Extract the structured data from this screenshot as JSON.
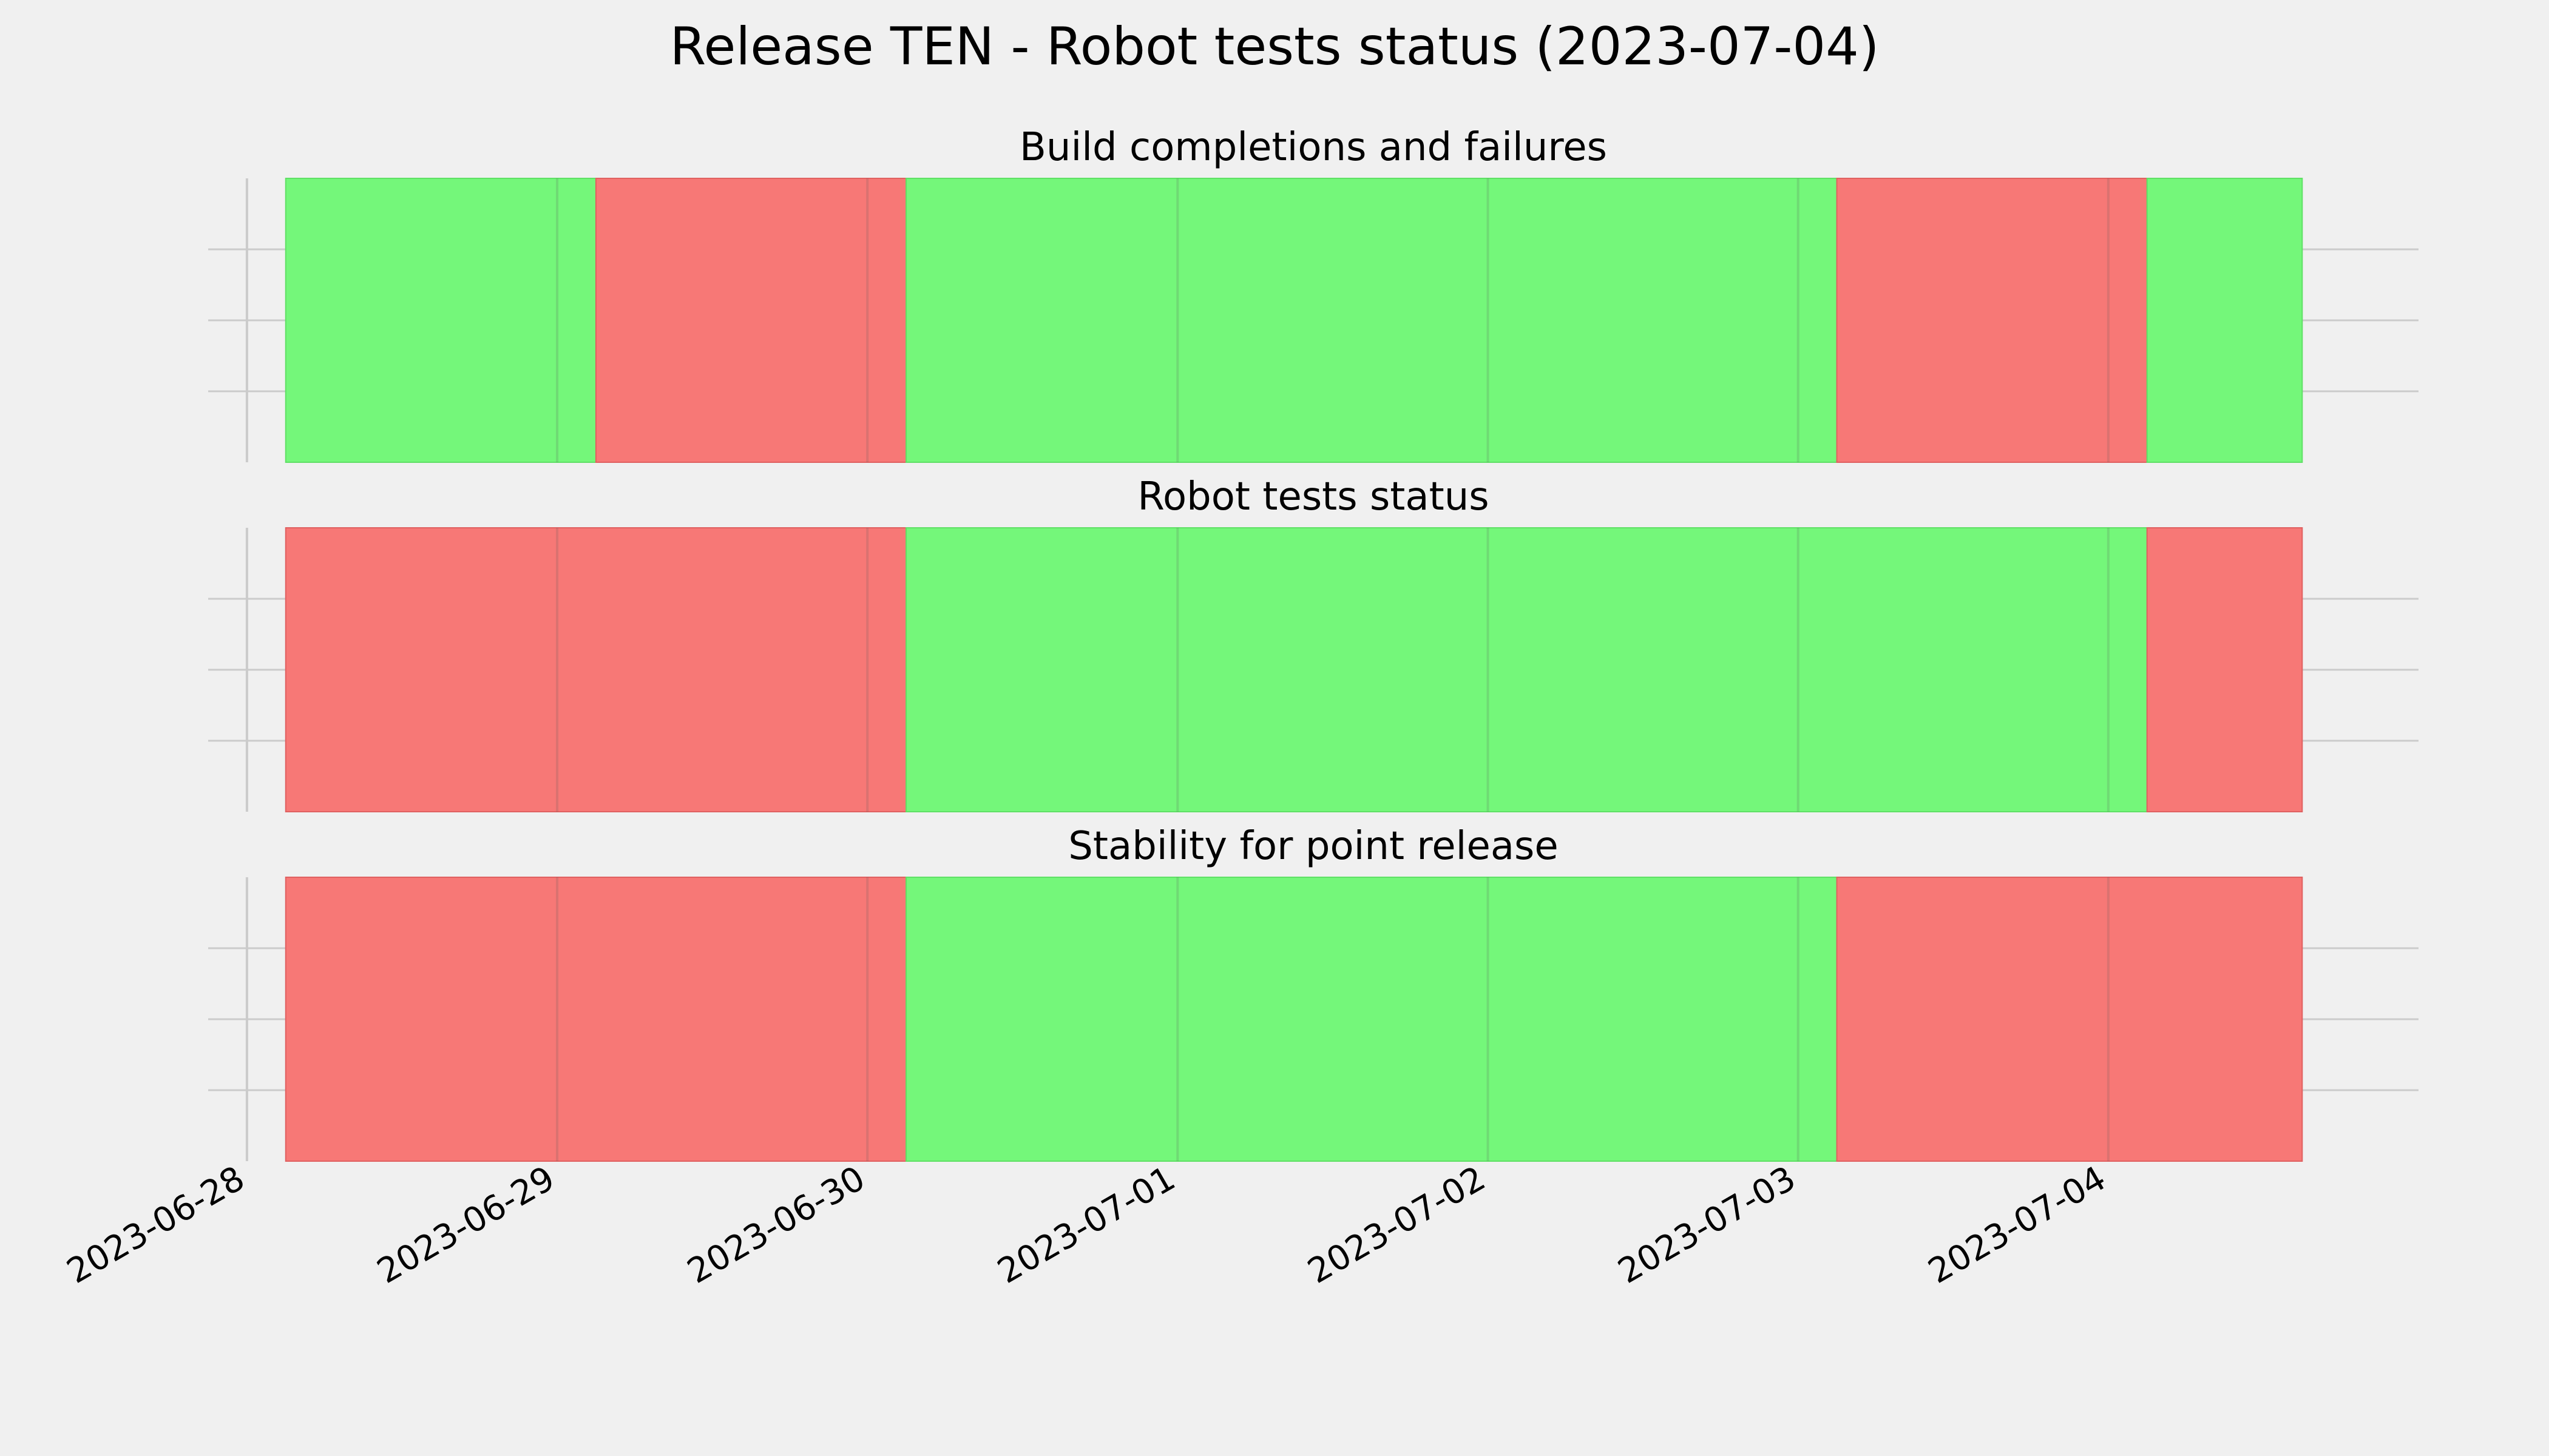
{
  "chart_data": {
    "type": "timeline",
    "title": "Release TEN - Robot tests status (2023-07-04)",
    "x_ticks": [
      "2023-06-28",
      "2023-06-29",
      "2023-06-30",
      "2023-07-01",
      "2023-07-02",
      "2023-07-03",
      "2023-07-04"
    ],
    "xlim": [
      "2023-06-27T21:00",
      "2023-07-05T00:00"
    ],
    "grid": true,
    "colors": {
      "pass": "#74f77a",
      "fail": "#f77876",
      "background": "#f0f0f0",
      "grid": "#cbcbcb"
    },
    "panels": [
      {
        "title": "Build completions and failures",
        "segments": [
          {
            "start": "2023-06-28T03:00",
            "end": "2023-06-29T03:00",
            "status": "pass"
          },
          {
            "start": "2023-06-29T03:00",
            "end": "2023-06-30T03:00",
            "status": "fail"
          },
          {
            "start": "2023-06-30T03:00",
            "end": "2023-07-03T03:00",
            "status": "pass"
          },
          {
            "start": "2023-07-03T03:00",
            "end": "2023-07-04T03:00",
            "status": "fail"
          },
          {
            "start": "2023-07-04T03:00",
            "end": "2023-07-04T15:00",
            "status": "pass"
          }
        ]
      },
      {
        "title": "Robot tests status",
        "segments": [
          {
            "start": "2023-06-28T03:00",
            "end": "2023-06-30T03:00",
            "status": "fail"
          },
          {
            "start": "2023-06-30T03:00",
            "end": "2023-07-04T03:00",
            "status": "pass"
          },
          {
            "start": "2023-07-04T03:00",
            "end": "2023-07-04T15:00",
            "status": "fail"
          }
        ]
      },
      {
        "title": "Stability for point release",
        "segments": [
          {
            "start": "2023-06-28T03:00",
            "end": "2023-06-30T03:00",
            "status": "fail"
          },
          {
            "start": "2023-06-30T03:00",
            "end": "2023-07-03T03:00",
            "status": "pass"
          },
          {
            "start": "2023-07-03T03:00",
            "end": "2023-07-04T15:00",
            "status": "fail"
          }
        ]
      }
    ]
  }
}
